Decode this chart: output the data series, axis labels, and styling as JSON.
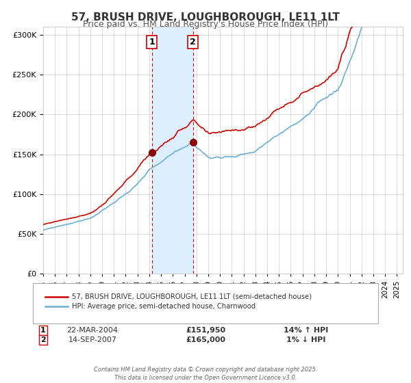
{
  "title": "57, BRUSH DRIVE, LOUGHBOROUGH, LE11 1LT",
  "subtitle": "Price paid vs. HM Land Registry's House Price Index (HPI)",
  "hpi_color": "#6baed6",
  "price_color": "#cc0000",
  "marker_color": "#8b0000",
  "shading_color": "#ddeeff",
  "annotation_box_color": "#cc0000",
  "ylim": [
    0,
    310000
  ],
  "yticks": [
    0,
    50000,
    100000,
    150000,
    200000,
    250000,
    300000
  ],
  "xlim_start": 1995.0,
  "xlim_end": 2025.5,
  "marker1_x": 2004.22,
  "marker1_y": 151950,
  "marker1_label": "1",
  "marker1_date": "22-MAR-2004",
  "marker1_price": "£151,950",
  "marker1_hpi": "14% ↑ HPI",
  "marker2_x": 2007.71,
  "marker2_y": 165000,
  "marker2_label": "2",
  "marker2_date": "14-SEP-2007",
  "marker2_price": "£165,000",
  "marker2_hpi": "1% ↓ HPI",
  "legend_line1": "57, BRUSH DRIVE, LOUGHBOROUGH, LE11 1LT (semi-detached house)",
  "legend_line2": "HPI: Average price, semi-detached house, Charnwood",
  "footer": "Contains HM Land Registry data © Crown copyright and database right 2025.\nThis data is licensed under the Open Government Licence v3.0.",
  "background_color": "#ffffff",
  "grid_color": "#cccccc"
}
